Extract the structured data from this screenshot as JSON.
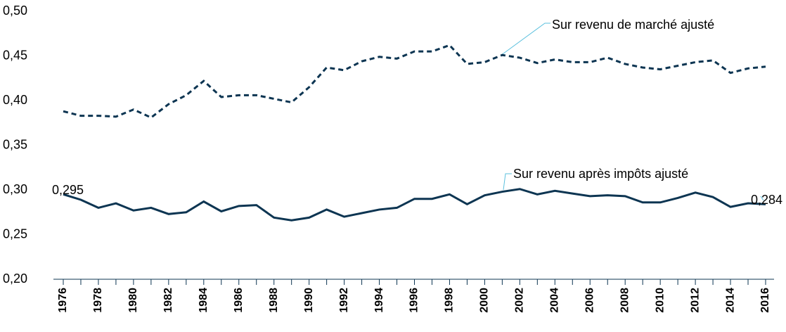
{
  "chart_data": {
    "type": "line",
    "categories": [
      "1976",
      null,
      "1978",
      null,
      "1980",
      null,
      "1982",
      null,
      "1984",
      null,
      "1986",
      null,
      "1988",
      null,
      "1990",
      null,
      "1992",
      null,
      "1994",
      null,
      "1996",
      null,
      "1998",
      null,
      "2000",
      null,
      "2002",
      null,
      "2004",
      null,
      "2006",
      null,
      "2008",
      null,
      "2010",
      null,
      "2012",
      null,
      "2014",
      null,
      "2016"
    ],
    "series": [
      {
        "name": "Sur revenu de marché ajusté",
        "color": "#0d3552",
        "dashed": true,
        "values": [
          0.388,
          0.383,
          0.383,
          0.382,
          0.39,
          0.381,
          0.396,
          0.406,
          0.422,
          0.404,
          0.406,
          0.406,
          0.402,
          0.398,
          0.415,
          0.437,
          0.434,
          0.444,
          0.449,
          0.447,
          0.455,
          0.455,
          0.462,
          0.441,
          0.443,
          0.451,
          0.448,
          0.442,
          0.446,
          0.443,
          0.443,
          0.448,
          0.441,
          0.437,
          0.435,
          0.439,
          0.443,
          0.445,
          0.431,
          0.436,
          0.438
        ]
      },
      {
        "name": "Sur revenu après impôts ajusté",
        "color": "#0d3552",
        "dashed": false,
        "values": [
          0.295,
          0.289,
          0.28,
          0.285,
          0.277,
          0.28,
          0.273,
          0.275,
          0.287,
          0.276,
          0.282,
          0.283,
          0.269,
          0.266,
          0.269,
          0.278,
          0.27,
          0.274,
          0.278,
          0.28,
          0.29,
          0.29,
          0.295,
          0.284,
          0.294,
          0.298,
          0.301,
          0.295,
          0.299,
          0.296,
          0.293,
          0.294,
          0.293,
          0.286,
          0.286,
          0.291,
          0.297,
          0.292,
          0.281,
          0.285,
          0.284
        ],
        "value_labels": [
          "0,295",
          null,
          null,
          null,
          null,
          null,
          null,
          null,
          null,
          null,
          null,
          null,
          null,
          null,
          null,
          null,
          null,
          null,
          null,
          null,
          null,
          null,
          null,
          null,
          null,
          null,
          null,
          null,
          null,
          null,
          null,
          null,
          null,
          null,
          null,
          null,
          null,
          null,
          null,
          null,
          "0,284"
        ]
      }
    ],
    "ylim": [
      0.2,
      0.5
    ],
    "yticks": [
      {
        "value": 0.2,
        "label": "0,20"
      },
      {
        "value": 0.25,
        "label": "0,25"
      },
      {
        "value": 0.3,
        "label": "0,30"
      },
      {
        "value": 0.35,
        "label": "0,35"
      },
      {
        "value": 0.4,
        "label": "0,40"
      },
      {
        "value": 0.45,
        "label": "0,45"
      },
      {
        "value": 0.5,
        "label": "0,50"
      }
    ],
    "grid": false
  }
}
